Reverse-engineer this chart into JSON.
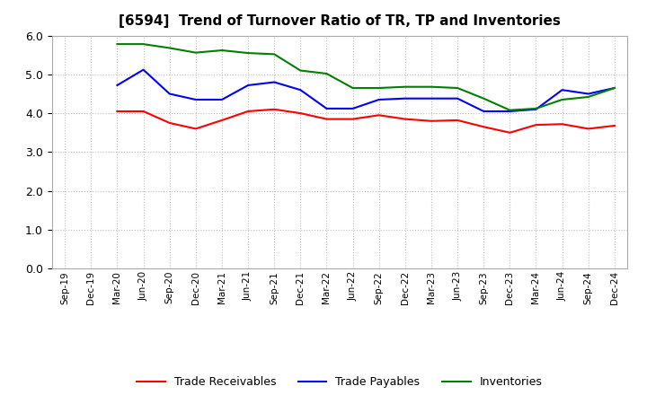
{
  "title": "[6594]  Trend of Turnover Ratio of TR, TP and Inventories",
  "x_labels": [
    "Sep-19",
    "Dec-19",
    "Mar-20",
    "Jun-20",
    "Sep-20",
    "Dec-20",
    "Mar-21",
    "Jun-21",
    "Sep-21",
    "Dec-21",
    "Mar-22",
    "Jun-22",
    "Sep-22",
    "Dec-22",
    "Mar-23",
    "Jun-23",
    "Sep-23",
    "Dec-23",
    "Mar-24",
    "Jun-24",
    "Sep-24",
    "Dec-24"
  ],
  "trade_receivables": [
    null,
    null,
    4.05,
    4.05,
    3.75,
    3.6,
    3.82,
    4.05,
    4.1,
    4.0,
    3.85,
    3.85,
    3.95,
    3.85,
    3.8,
    3.82,
    3.65,
    3.5,
    3.7,
    3.72,
    3.6,
    3.68
  ],
  "trade_payables": [
    null,
    null,
    4.72,
    5.12,
    4.5,
    4.35,
    4.35,
    4.72,
    4.8,
    4.6,
    4.12,
    4.12,
    4.35,
    4.38,
    4.38,
    4.38,
    4.05,
    4.05,
    4.1,
    4.6,
    4.5,
    4.65
  ],
  "inventories": [
    null,
    null,
    5.78,
    5.78,
    5.68,
    5.56,
    5.62,
    5.55,
    5.52,
    5.1,
    5.02,
    4.65,
    4.65,
    4.68,
    4.68,
    4.65,
    4.38,
    4.08,
    4.12,
    4.35,
    4.42,
    4.65
  ],
  "tr_color": "#ff0000",
  "tp_color": "#0000ff",
  "inv_color": "#008000",
  "ylim": [
    0.0,
    6.0
  ],
  "yticks": [
    0.0,
    1.0,
    2.0,
    3.0,
    4.0,
    5.0,
    6.0
  ],
  "background_color": "#ffffff",
  "grid_color": "#bbbbbb",
  "title_fontsize": 11,
  "legend_labels": [
    "Trade Receivables",
    "Trade Payables",
    "Inventories"
  ]
}
